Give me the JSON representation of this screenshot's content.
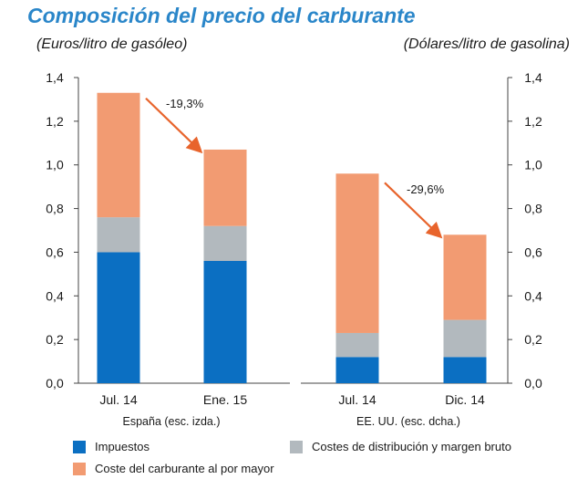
{
  "title": "Composición del precio del carburante",
  "unit_left": "(Euros/litro de gasóleo)",
  "unit_right": "(Dólares/litro de gasolina)",
  "chart_data": {
    "type": "bar",
    "stacked": true,
    "title": "Composición del precio del carburante",
    "ylim": [
      0,
      1.4
    ],
    "yticks": [
      "0,0",
      "0,2",
      "0,4",
      "0,6",
      "0,8",
      "1,0",
      "1,2",
      "1,4"
    ],
    "ytick_values": [
      0,
      0.2,
      0.4,
      0.6,
      0.8,
      1.0,
      1.2,
      1.4
    ],
    "grid": false,
    "legend_position": "bottom",
    "groups": [
      {
        "label": "España (esc. izda.)",
        "axis": "left",
        "categories": [
          "Jul. 14",
          "Ene. 15"
        ],
        "series": [
          {
            "name": "Impuestos",
            "values": [
              0.6,
              0.56
            ]
          },
          {
            "name": "Costes de distribución y margen bruto",
            "values": [
              0.16,
              0.16
            ]
          },
          {
            "name": "Coste del carburante al por mayor",
            "values": [
              0.57,
              0.35
            ]
          }
        ],
        "annotation": "-19,3%"
      },
      {
        "label": "EE. UU. (esc. dcha.)",
        "axis": "right",
        "categories": [
          "Jul. 14",
          "Dic. 14"
        ],
        "series": [
          {
            "name": "Impuestos",
            "values": [
              0.12,
              0.12
            ]
          },
          {
            "name": "Costes de distribución y margen bruto",
            "values": [
              0.11,
              0.17
            ]
          },
          {
            "name": "Coste del carburante al por mayor",
            "values": [
              0.73,
              0.39
            ]
          }
        ],
        "annotation": "-29,6%"
      }
    ],
    "colors": {
      "Impuestos": "#0b6fc2",
      "Costes de distribución y margen bruto": "#b2b9be",
      "Coste del carburante al por mayor": "#f29b72",
      "arrow": "#e8642c"
    }
  }
}
